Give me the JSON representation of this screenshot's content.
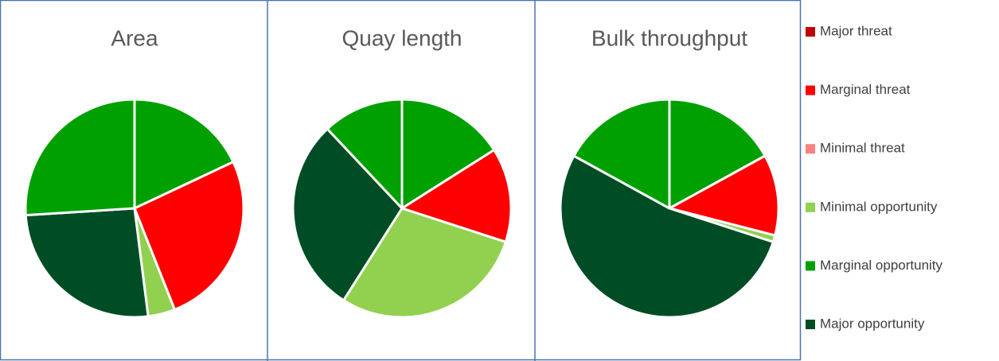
{
  "chart_data": [
    {
      "type": "pie",
      "title": "Area",
      "values": [
        18,
        26,
        4,
        26,
        26
      ],
      "colors": [
        "#00a000",
        "#ff0000",
        "#92d050",
        "#004d25",
        "#00a000"
      ]
    },
    {
      "type": "pie",
      "title": "Quay length",
      "values": [
        16,
        14,
        29,
        29,
        12
      ],
      "colors": [
        "#00a000",
        "#ff0000",
        "#92d050",
        "#004d25",
        "#00a000"
      ]
    },
    {
      "type": "pie",
      "title": "Bulk throughput",
      "values": [
        17,
        12,
        1,
        53,
        17
      ],
      "colors": [
        "#00a000",
        "#ff0000",
        "#92d050",
        "#004d25",
        "#00a000"
      ]
    }
  ],
  "legend": [
    {
      "name": "Major threat",
      "color": "#c00000"
    },
    {
      "name": "Marginal threat",
      "color": "#ff0000"
    },
    {
      "name": "Minimal threat",
      "color": "#ff8080"
    },
    {
      "name": "Minimal opportunity",
      "color": "#92d050"
    },
    {
      "name": "Marginal opportunity",
      "color": "#00a000"
    },
    {
      "name": "Major opportunity",
      "color": "#004d25"
    }
  ]
}
